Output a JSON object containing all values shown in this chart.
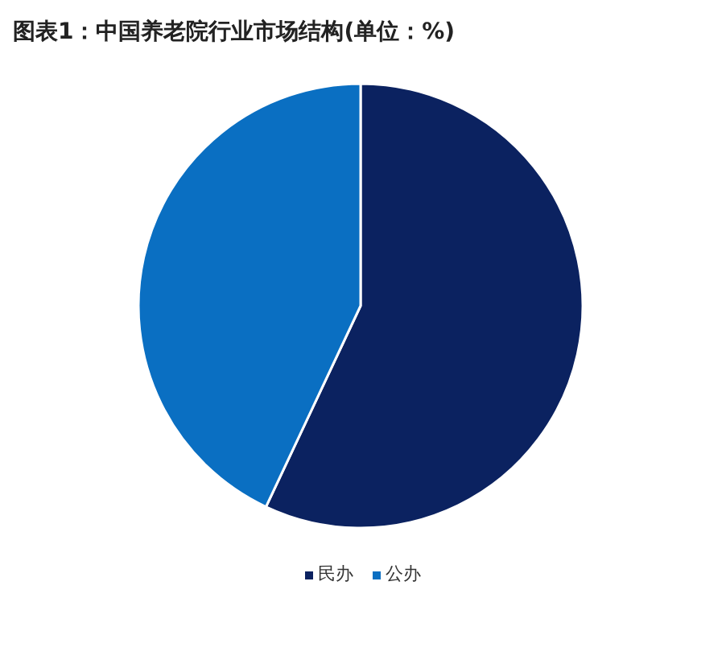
{
  "chart_data": {
    "type": "pie",
    "title": "图表1：中国养老院行业市场结构(单位：%)",
    "categories": [
      "民办",
      "公办"
    ],
    "values": [
      57,
      43
    ],
    "colors": [
      "#0b2260",
      "#0a6fc2"
    ],
    "legend": "bottom"
  }
}
